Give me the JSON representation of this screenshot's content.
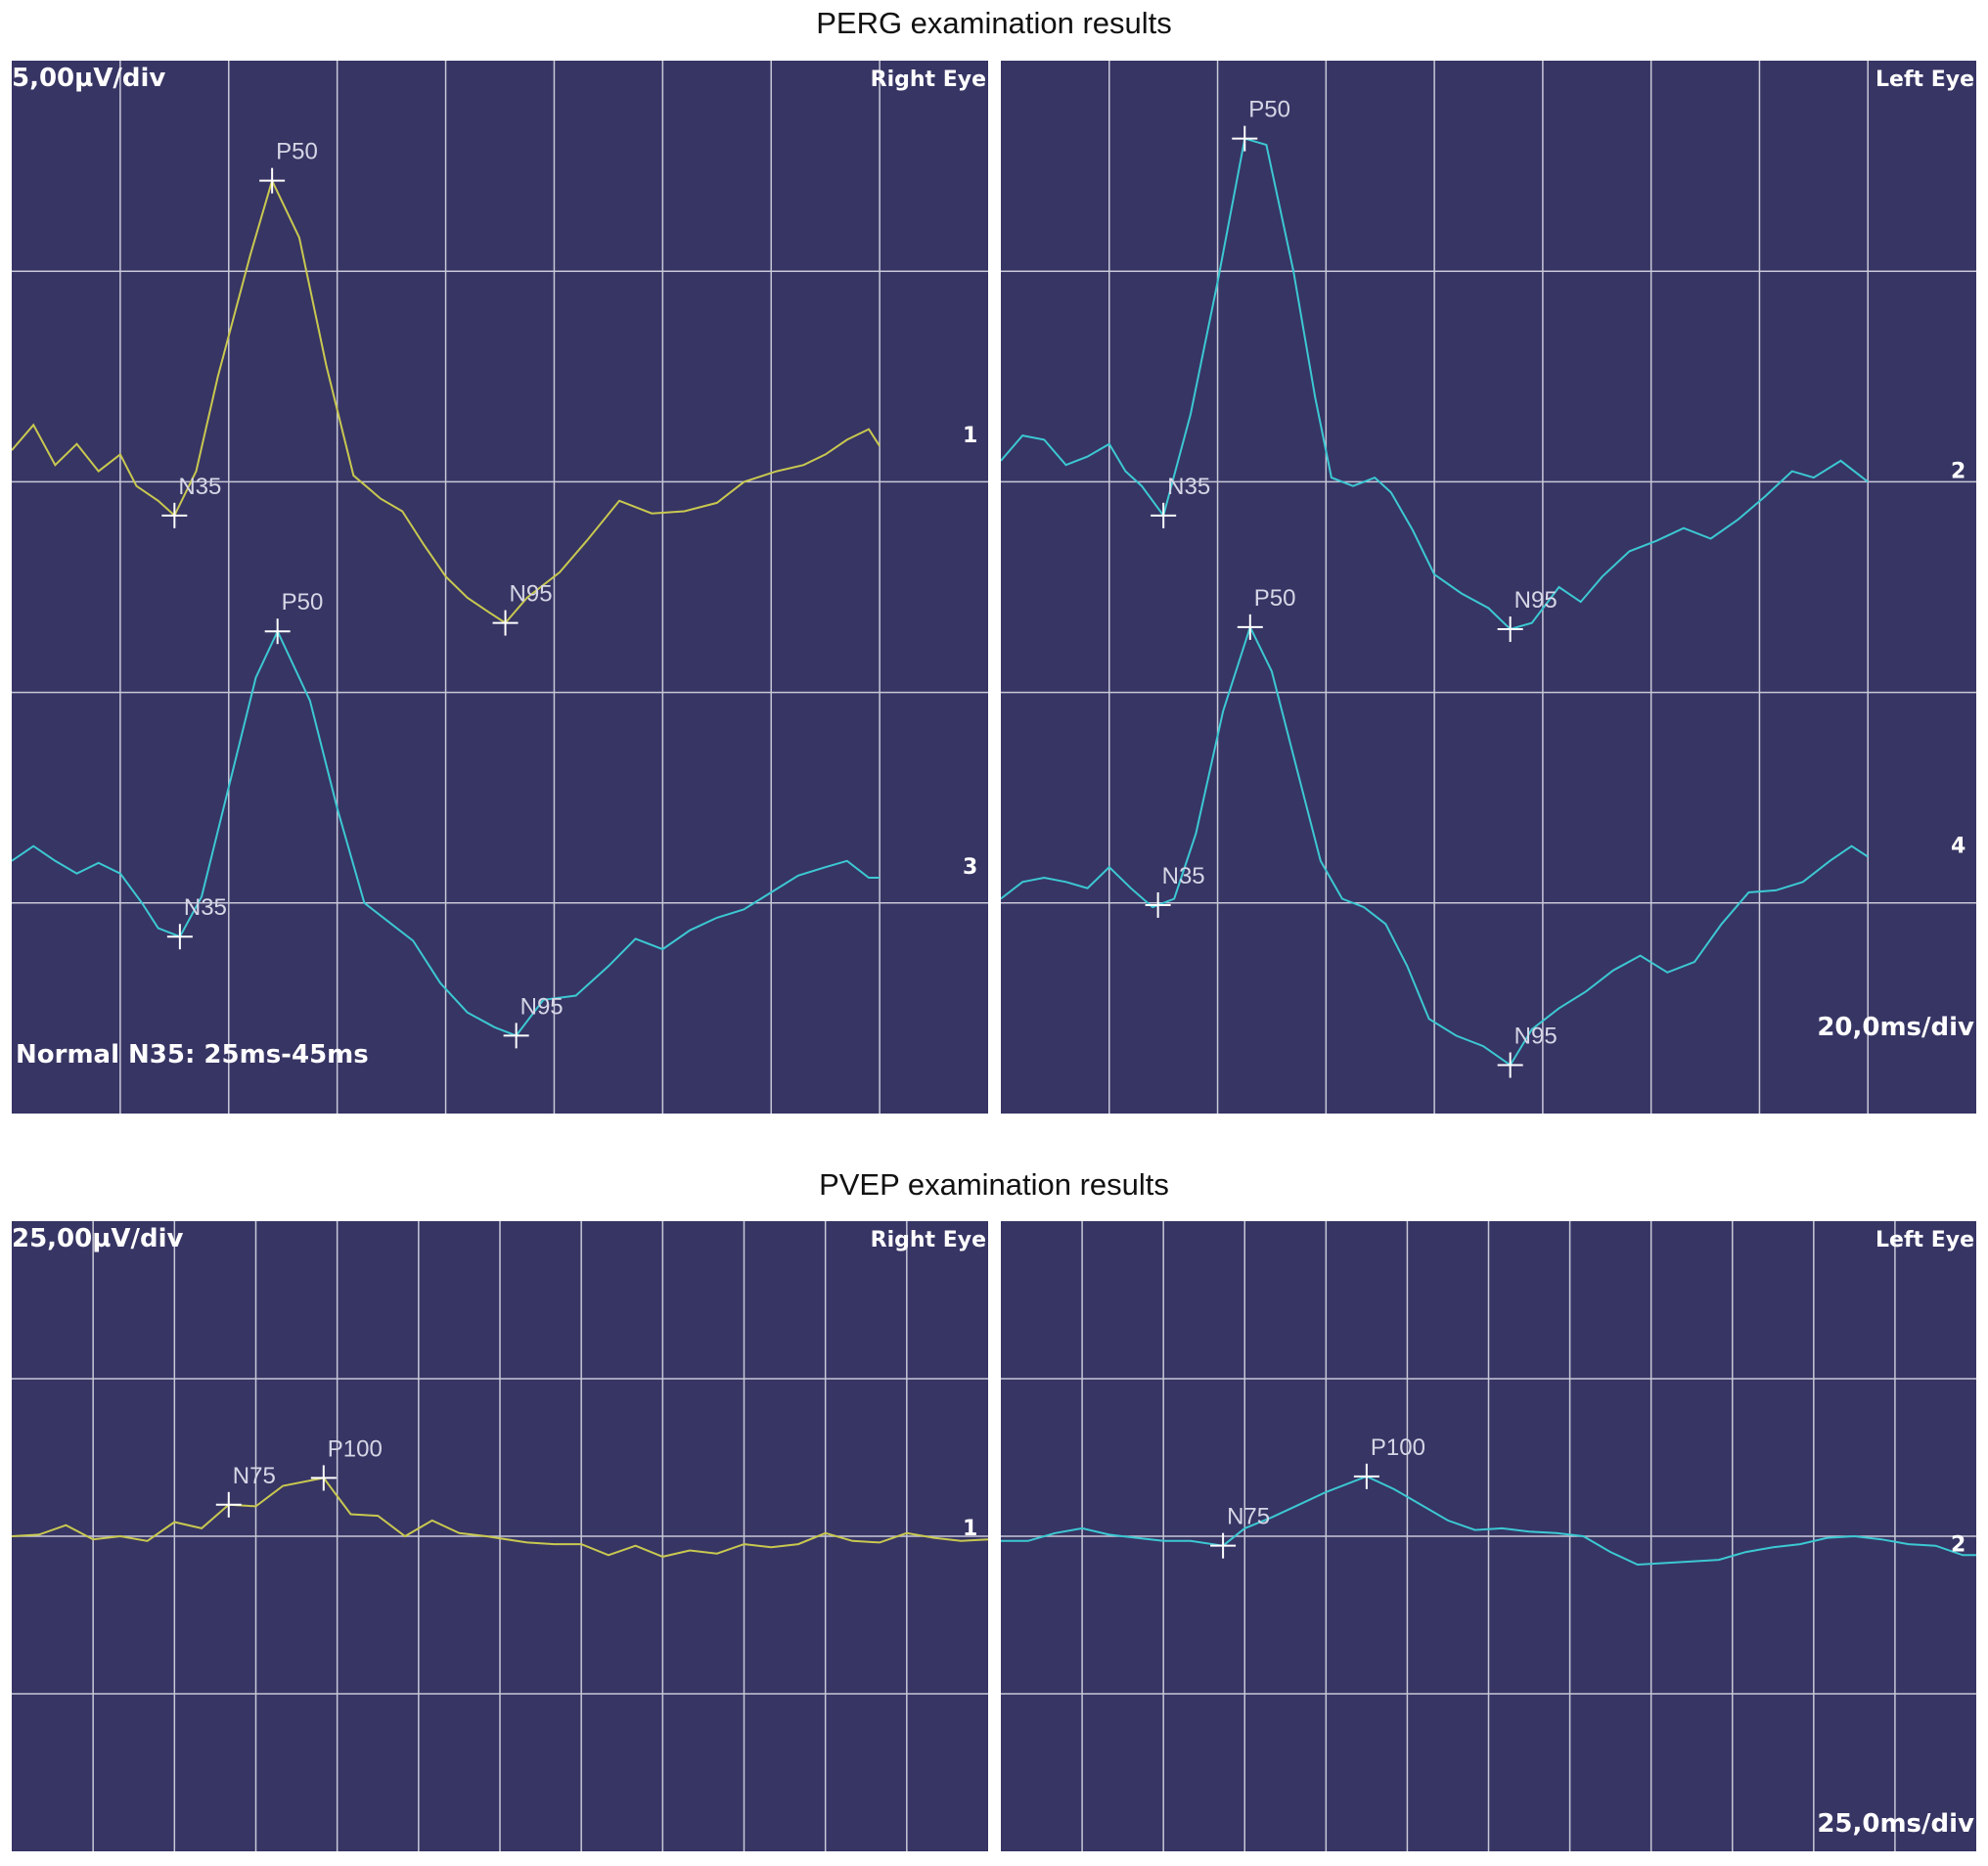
{
  "colors": {
    "panel_bg": "#373564",
    "grid": "#c8c8d8",
    "trace_yellow": "#c8c850",
    "trace_cyan": "#3cc8d2",
    "text": "#ffffff",
    "marker_label": "#d6d6e6"
  },
  "chart_data": [
    {
      "type": "line",
      "title": "PERG examination results",
      "panel": "Right Eye",
      "scale_label": "5,00µV/div",
      "note": "Normal N35: 25ms-45ms",
      "x_unit": "ms",
      "y_unit": "div",
      "x_divisions": 9,
      "y_divisions": 5,
      "series": [
        {
          "name": "1",
          "color_key": "trace_yellow",
          "baseline_div": 3.0,
          "points": [
            [
              0,
              0.15
            ],
            [
              4,
              0.27
            ],
            [
              8,
              0.08
            ],
            [
              12,
              0.18
            ],
            [
              16,
              0.05
            ],
            [
              20,
              0.13
            ],
            [
              23,
              -0.02
            ],
            [
              27,
              -0.09
            ],
            [
              30,
              -0.16
            ],
            [
              34,
              0.05
            ],
            [
              38,
              0.5
            ],
            [
              44,
              1.08
            ],
            [
              48,
              1.43
            ],
            [
              53,
              1.16
            ],
            [
              58,
              0.55
            ],
            [
              63,
              0.03
            ],
            [
              68,
              -0.08
            ],
            [
              72,
              -0.14
            ],
            [
              76,
              -0.3
            ],
            [
              80,
              -0.45
            ],
            [
              84,
              -0.55
            ],
            [
              88,
              -0.62
            ],
            [
              91,
              -0.67
            ],
            [
              95,
              -0.55
            ],
            [
              101,
              -0.43
            ],
            [
              106,
              -0.28
            ],
            [
              112,
              -0.09
            ],
            [
              118,
              -0.15
            ],
            [
              124,
              -0.14
            ],
            [
              130,
              -0.1
            ],
            [
              135,
              0.0
            ],
            [
              141,
              0.05
            ],
            [
              146,
              0.08
            ],
            [
              150,
              0.13
            ],
            [
              154,
              0.2
            ],
            [
              158,
              0.25
            ],
            [
              160,
              0.17
            ]
          ],
          "markers": [
            {
              "label": "N35",
              "x": 30
            },
            {
              "label": "P50",
              "x": 48
            },
            {
              "label": "N95",
              "x": 91
            }
          ],
          "end_label": "1"
        },
        {
          "name": "3",
          "color_key": "trace_cyan",
          "baseline_div": 1.0,
          "points": [
            [
              0,
              0.2
            ],
            [
              4,
              0.27
            ],
            [
              8,
              0.2
            ],
            [
              12,
              0.14
            ],
            [
              16,
              0.19
            ],
            [
              20,
              0.14
            ],
            [
              24,
              0.0
            ],
            [
              27,
              -0.12
            ],
            [
              31,
              -0.16
            ],
            [
              35,
              0.03
            ],
            [
              40,
              0.55
            ],
            [
              45,
              1.07
            ],
            [
              49,
              1.29
            ],
            [
              55,
              0.96
            ],
            [
              60,
              0.45
            ],
            [
              65,
              0.0
            ],
            [
              70,
              -0.1
            ],
            [
              74,
              -0.18
            ],
            [
              79,
              -0.38
            ],
            [
              84,
              -0.52
            ],
            [
              89,
              -0.59
            ],
            [
              93,
              -0.63
            ],
            [
              98,
              -0.46
            ],
            [
              104,
              -0.44
            ],
            [
              110,
              -0.3
            ],
            [
              115,
              -0.17
            ],
            [
              120,
              -0.22
            ],
            [
              125,
              -0.13
            ],
            [
              130,
              -0.07
            ],
            [
              135,
              -0.03
            ],
            [
              140,
              0.05
            ],
            [
              145,
              0.13
            ],
            [
              150,
              0.17
            ],
            [
              154,
              0.2
            ],
            [
              158,
              0.12
            ],
            [
              160,
              0.12
            ]
          ],
          "markers": [
            {
              "label": "N35",
              "x": 31
            },
            {
              "label": "P50",
              "x": 49
            },
            {
              "label": "N95",
              "x": 93
            }
          ],
          "end_label": "3"
        }
      ]
    },
    {
      "type": "line",
      "title": "PERG examination results",
      "panel": "Left Eye",
      "scale_label": "20,0ms/div",
      "x_unit": "ms",
      "y_unit": "div",
      "x_divisions": 9,
      "y_divisions": 5,
      "series": [
        {
          "name": "2",
          "color_key": "trace_cyan",
          "baseline_div": 3.0,
          "points": [
            [
              0,
              0.1
            ],
            [
              4,
              0.22
            ],
            [
              8,
              0.2
            ],
            [
              12,
              0.08
            ],
            [
              16,
              0.12
            ],
            [
              20,
              0.18
            ],
            [
              23,
              0.05
            ],
            [
              26,
              -0.02
            ],
            [
              30,
              -0.16
            ],
            [
              35,
              0.32
            ],
            [
              40,
              0.95
            ],
            [
              45,
              1.63
            ],
            [
              49,
              1.6
            ],
            [
              54,
              1.0
            ],
            [
              58,
              0.4
            ],
            [
              61,
              0.02
            ],
            [
              65,
              -0.02
            ],
            [
              69,
              0.02
            ],
            [
              72,
              -0.05
            ],
            [
              76,
              -0.23
            ],
            [
              80,
              -0.44
            ],
            [
              85,
              -0.53
            ],
            [
              90,
              -0.6
            ],
            [
              94,
              -0.7
            ],
            [
              98,
              -0.67
            ],
            [
              103,
              -0.5
            ],
            [
              107,
              -0.57
            ],
            [
              111,
              -0.45
            ],
            [
              116,
              -0.33
            ],
            [
              121,
              -0.28
            ],
            [
              126,
              -0.22
            ],
            [
              131,
              -0.27
            ],
            [
              136,
              -0.18
            ],
            [
              141,
              -0.07
            ],
            [
              146,
              0.05
            ],
            [
              150,
              0.02
            ],
            [
              155,
              0.1
            ],
            [
              160,
              0.0
            ]
          ],
          "markers": [
            {
              "label": "N35",
              "x": 30
            },
            {
              "label": "P50",
              "x": 45
            },
            {
              "label": "N95",
              "x": 94
            }
          ],
          "end_label": "2"
        },
        {
          "name": "4",
          "color_key": "trace_cyan",
          "baseline_div": 1.0,
          "points": [
            [
              0,
              0.02
            ],
            [
              4,
              0.1
            ],
            [
              8,
              0.12
            ],
            [
              12,
              0.1
            ],
            [
              16,
              0.07
            ],
            [
              20,
              0.17
            ],
            [
              24,
              0.07
            ],
            [
              28,
              -0.02
            ],
            [
              32,
              0.02
            ],
            [
              36,
              0.33
            ],
            [
              41,
              0.91
            ],
            [
              46,
              1.31
            ],
            [
              50,
              1.1
            ],
            [
              55,
              0.6
            ],
            [
              59,
              0.2
            ],
            [
              63,
              0.02
            ],
            [
              67,
              -0.02
            ],
            [
              71,
              -0.1
            ],
            [
              75,
              -0.3
            ],
            [
              79,
              -0.55
            ],
            [
              84,
              -0.63
            ],
            [
              89,
              -0.68
            ],
            [
              94,
              -0.77
            ],
            [
              98,
              -0.6
            ],
            [
              103,
              -0.5
            ],
            [
              108,
              -0.42
            ],
            [
              113,
              -0.32
            ],
            [
              118,
              -0.25
            ],
            [
              123,
              -0.33
            ],
            [
              128,
              -0.28
            ],
            [
              133,
              -0.1
            ],
            [
              138,
              0.05
            ],
            [
              143,
              0.06
            ],
            [
              148,
              0.1
            ],
            [
              153,
              0.2
            ],
            [
              157,
              0.27
            ],
            [
              160,
              0.22
            ]
          ],
          "markers": [
            {
              "label": "N35",
              "x": 29
            },
            {
              "label": "P50",
              "x": 46
            },
            {
              "label": "N95",
              "x": 94
            }
          ],
          "end_label": "4"
        }
      ]
    },
    {
      "type": "line",
      "title": "PVEP examination results",
      "panel": "Right Eye",
      "scale_label": "25,00µV/div",
      "x_unit": "ms",
      "y_unit": "div",
      "x_divisions": 12,
      "y_divisions": 4,
      "series": [
        {
          "name": "1",
          "color_key": "trace_yellow",
          "baseline_div": 2.0,
          "points": [
            [
              0,
              0.0
            ],
            [
              10,
              0.01
            ],
            [
              20,
              0.07
            ],
            [
              30,
              -0.02
            ],
            [
              40,
              0.0
            ],
            [
              50,
              -0.03
            ],
            [
              60,
              0.09
            ],
            [
              70,
              0.05
            ],
            [
              80,
              0.2
            ],
            [
              90,
              0.19
            ],
            [
              100,
              0.32
            ],
            [
              115,
              0.37
            ],
            [
              125,
              0.14
            ],
            [
              135,
              0.13
            ],
            [
              145,
              0.0
            ],
            [
              155,
              0.1
            ],
            [
              165,
              0.02
            ],
            [
              175,
              0.0
            ],
            [
              190,
              -0.04
            ],
            [
              200,
              -0.05
            ],
            [
              210,
              -0.05
            ],
            [
              220,
              -0.12
            ],
            [
              230,
              -0.06
            ],
            [
              240,
              -0.13
            ],
            [
              250,
              -0.09
            ],
            [
              260,
              -0.11
            ],
            [
              270,
              -0.05
            ],
            [
              280,
              -0.07
            ],
            [
              290,
              -0.05
            ],
            [
              300,
              0.02
            ],
            [
              310,
              -0.03
            ],
            [
              320,
              -0.04
            ],
            [
              330,
              0.02
            ],
            [
              340,
              -0.01
            ],
            [
              350,
              -0.03
            ],
            [
              360,
              -0.02
            ]
          ],
          "markers": [
            {
              "label": "N75",
              "x": 80
            },
            {
              "label": "P100",
              "x": 115
            }
          ],
          "end_label": "1"
        }
      ]
    },
    {
      "type": "line",
      "title": "PVEP examination results",
      "panel": "Left Eye",
      "scale_label": "25,0ms/div",
      "x_unit": "ms",
      "y_unit": "div",
      "x_divisions": 12,
      "y_divisions": 4,
      "series": [
        {
          "name": "2",
          "color_key": "trace_cyan",
          "baseline_div": 2.0,
          "points": [
            [
              0,
              -0.03
            ],
            [
              10,
              -0.03
            ],
            [
              20,
              0.02
            ],
            [
              30,
              0.05
            ],
            [
              40,
              0.01
            ],
            [
              50,
              -0.01
            ],
            [
              60,
              -0.03
            ],
            [
              70,
              -0.03
            ],
            [
              82,
              -0.06
            ],
            [
              90,
              0.05
            ],
            [
              100,
              0.12
            ],
            [
              110,
              0.2
            ],
            [
              120,
              0.28
            ],
            [
              135,
              0.38
            ],
            [
              145,
              0.3
            ],
            [
              155,
              0.2
            ],
            [
              165,
              0.1
            ],
            [
              175,
              0.04
            ],
            [
              185,
              0.05
            ],
            [
              195,
              0.03
            ],
            [
              205,
              0.02
            ],
            [
              215,
              0.0
            ],
            [
              225,
              -0.1
            ],
            [
              235,
              -0.18
            ],
            [
              245,
              -0.17
            ],
            [
              255,
              -0.16
            ],
            [
              265,
              -0.15
            ],
            [
              275,
              -0.1
            ],
            [
              285,
              -0.07
            ],
            [
              295,
              -0.05
            ],
            [
              305,
              -0.01
            ],
            [
              315,
              0.0
            ],
            [
              325,
              -0.02
            ],
            [
              335,
              -0.05
            ],
            [
              345,
              -0.06
            ],
            [
              355,
              -0.12
            ],
            [
              360,
              -0.12
            ]
          ],
          "markers": [
            {
              "label": "N75",
              "x": 82
            },
            {
              "label": "P100",
              "x": 135
            }
          ],
          "end_label": "2"
        }
      ]
    }
  ],
  "panels": {
    "perg_right": {
      "label": "Right Eye",
      "scale": "5,00µV/div",
      "note": "Normal N35: 25ms-45ms"
    },
    "perg_left": {
      "label": "Left Eye",
      "scale": "20,0ms/div"
    },
    "pvep_right": {
      "label": "Right Eye",
      "scale": "25,00µV/div"
    },
    "pvep_left": {
      "label": "Left Eye",
      "scale": "25,0ms/div"
    }
  },
  "titles": {
    "perg": "PERG examination results",
    "pvep": "PVEP examination results"
  }
}
